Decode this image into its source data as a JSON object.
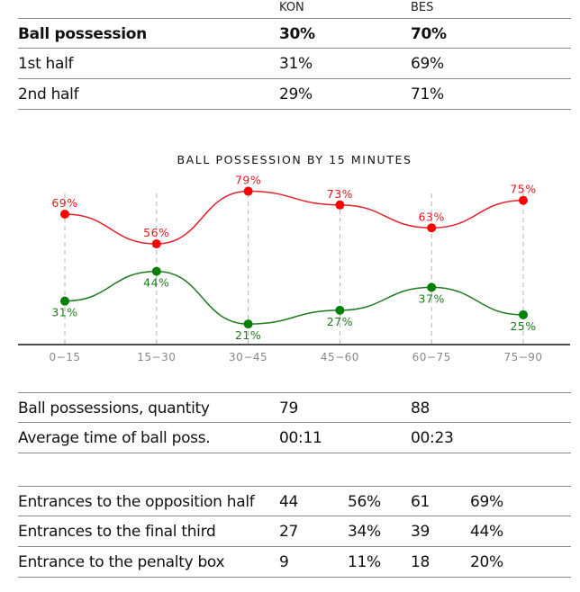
{
  "header": {
    "team_a": "KON",
    "team_b": "BES"
  },
  "possession_table": [
    {
      "label": "Ball possession",
      "kon": "30%",
      "bes": "70%",
      "bold": true
    },
    {
      "label": "1st half",
      "kon": "31%",
      "bes": "69%"
    },
    {
      "label": "2nd half",
      "kon": "29%",
      "bes": "71%"
    }
  ],
  "quantity_table": [
    {
      "label": "Ball possessions, quantity",
      "kon": "79",
      "bes": "88"
    },
    {
      "label": "Average time of ball poss.",
      "kon": "00:11",
      "bes": "00:23"
    }
  ],
  "entrances_table": [
    {
      "label": "Entrances to the opposition half",
      "kon": "44",
      "kon_pct": "56%",
      "bes": "61",
      "bes_pct": "69%"
    },
    {
      "label": "Entrances to the final third",
      "kon": "27",
      "kon_pct": "34%",
      "bes": "39",
      "bes_pct": "44%"
    },
    {
      "label": "Entrance to the penalty box",
      "kon": "9",
      "kon_pct": "11%",
      "bes": "18",
      "bes_pct": "20%"
    }
  ],
  "chart_data": {
    "type": "line",
    "title": "BALL POSSESSION BY 15 MINUTES",
    "categories": [
      "0−15",
      "15−30",
      "30−45",
      "45−60",
      "60−75",
      "75−90"
    ],
    "series": [
      {
        "name": "BES",
        "color": "#ff0000",
        "line_color": "#e0202a",
        "label_position": "above",
        "values": [
          69,
          56,
          79,
          73,
          63,
          75
        ]
      },
      {
        "name": "KON",
        "color": "#008000",
        "line_color": "#1f7a1f",
        "label_position": "below",
        "values": [
          31,
          44,
          21,
          27,
          37,
          25
        ]
      }
    ],
    "value_suffix": "%",
    "xlabel": "",
    "ylabel": "",
    "ylim": [
      12,
      80
    ],
    "grid": "vertical-dashed",
    "smooth": true
  }
}
